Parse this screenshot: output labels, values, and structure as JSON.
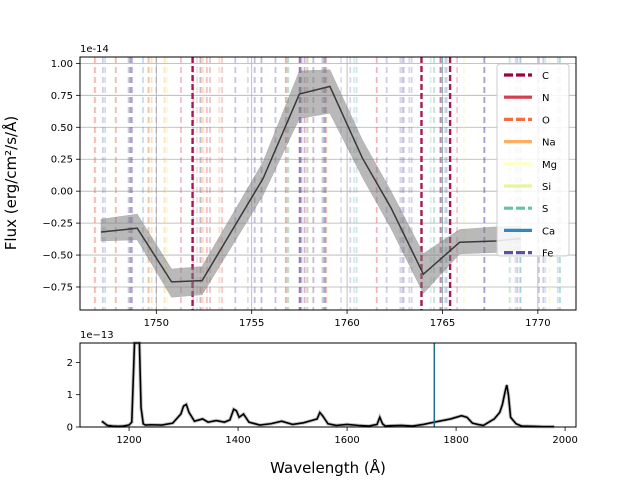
{
  "chart_data": [
    {
      "type": "line",
      "role": "main-zoom",
      "xlim": [
        1746,
        1772
      ],
      "ylim": [
        -0.93,
        1.05
      ],
      "y_scale_label": "1e-14",
      "ylabel": "Flux (erg/cm²/s/Å)",
      "xticks": [
        "1750",
        "1755",
        "1760",
        "1765",
        "1770"
      ],
      "yticks": [
        "−0.75",
        "−0.50",
        "−0.25",
        "0.00",
        "0.25",
        "0.50",
        "0.75",
        "1.00"
      ],
      "grid": true,
      "legend_position": "top-right",
      "series": [
        {
          "x": [
            1747.1,
            1749.0,
            1750.8,
            1752.4,
            1755.6,
            1757.5,
            1759.1,
            1760.8,
            1762.3,
            1764.0,
            1765.9,
            1767.8,
            1769.1
          ],
          "y": [
            -0.32,
            -0.29,
            -0.71,
            -0.7,
            0.1,
            0.76,
            0.82,
            0.26,
            -0.13,
            -0.65,
            -0.4,
            -0.39,
            -0.37
          ],
          "y_lower": [
            -0.39,
            -0.38,
            -0.83,
            -0.81,
            -0.03,
            0.57,
            0.61,
            0.11,
            -0.29,
            -0.8,
            -0.49,
            -0.48,
            -0.46
          ],
          "y_upper": [
            -0.22,
            -0.18,
            -0.61,
            -0.59,
            0.23,
            0.94,
            0.95,
            0.4,
            0.0,
            -0.49,
            -0.3,
            -0.28,
            -0.27
          ]
        }
      ],
      "lines": [
        {
          "element": "C",
          "x": 1751.9,
          "style": "dashed",
          "color": "#9e0142"
        },
        {
          "element": "C",
          "x": 1763.9,
          "style": "dashed",
          "color": "#9e0142"
        },
        {
          "element": "C",
          "x": 1765.4,
          "style": "dashed",
          "color": "#9e0142"
        }
      ],
      "legend": [
        {
          "label": "C",
          "color": "#9e0142",
          "style": "dashed"
        },
        {
          "label": "N",
          "color": "#d53e4f",
          "style": "solid"
        },
        {
          "label": "O",
          "color": "#f46d43",
          "style": "dashed"
        },
        {
          "label": "Na",
          "color": "#fdae61",
          "style": "solid"
        },
        {
          "label": "Mg",
          "color": "#ffffbf",
          "style": "solid"
        },
        {
          "label": "Si",
          "color": "#e6f598",
          "style": "solid"
        },
        {
          "label": "S",
          "color": "#66c2a5",
          "style": "dashed"
        },
        {
          "label": "Ca",
          "color": "#3288bd",
          "style": "solid"
        },
        {
          "label": "Fe",
          "color": "#5e4fa2",
          "style": "dashed"
        }
      ]
    },
    {
      "type": "line",
      "role": "overview",
      "xlim": [
        1110,
        2020
      ],
      "ylim": [
        0,
        2.6
      ],
      "y_scale_label": "1e−13",
      "xlabel": "Wavelength (Å)",
      "xticks": [
        "1200",
        "1400",
        "1600",
        "1800",
        "2000"
      ],
      "yticks": [
        "0",
        "1",
        "2"
      ],
      "marker_x": 1760,
      "marker_color": "#1f6f8b",
      "series": [
        {
          "x": [
            1150,
            1160,
            1170,
            1180,
            1190,
            1200,
            1205,
            1210,
            1213,
            1216,
            1219,
            1222,
            1226,
            1230,
            1240,
            1260,
            1280,
            1295,
            1300,
            1305,
            1310,
            1320,
            1335,
            1345,
            1360,
            1375,
            1385,
            1392,
            1397,
            1402,
            1410,
            1420,
            1440,
            1460,
            1480,
            1500,
            1520,
            1535,
            1545,
            1550,
            1555,
            1565,
            1580,
            1600,
            1620,
            1640,
            1655,
            1660,
            1665,
            1670,
            1680,
            1700,
            1720,
            1740,
            1760,
            1775,
            1790,
            1800,
            1810,
            1820,
            1830,
            1840,
            1850,
            1860,
            1870,
            1880,
            1885,
            1890,
            1893,
            1896,
            1900,
            1910,
            1920,
            1940,
            1960,
            1980
          ],
          "y": [
            0.18,
            0.05,
            0.03,
            0.02,
            0.03,
            0.06,
            0.15,
            2.6,
            2.6,
            2.6,
            2.6,
            0.6,
            0.1,
            0.06,
            0.07,
            0.06,
            0.12,
            0.4,
            0.65,
            0.7,
            0.45,
            0.18,
            0.25,
            0.15,
            0.2,
            0.15,
            0.22,
            0.55,
            0.5,
            0.3,
            0.4,
            0.15,
            0.06,
            0.1,
            0.18,
            0.08,
            0.13,
            0.2,
            0.25,
            0.45,
            0.35,
            0.1,
            0.05,
            0.08,
            0.05,
            0.03,
            0.08,
            0.3,
            0.1,
            0.03,
            0.04,
            0.05,
            0.03,
            0.08,
            0.15,
            0.2,
            0.25,
            0.3,
            0.35,
            0.3,
            0.12,
            0.08,
            0.05,
            0.15,
            0.25,
            0.45,
            0.7,
            1.1,
            1.3,
            1.0,
            0.3,
            0.1,
            0.03,
            0.02,
            0.01,
            0.01
          ]
        }
      ]
    }
  ]
}
